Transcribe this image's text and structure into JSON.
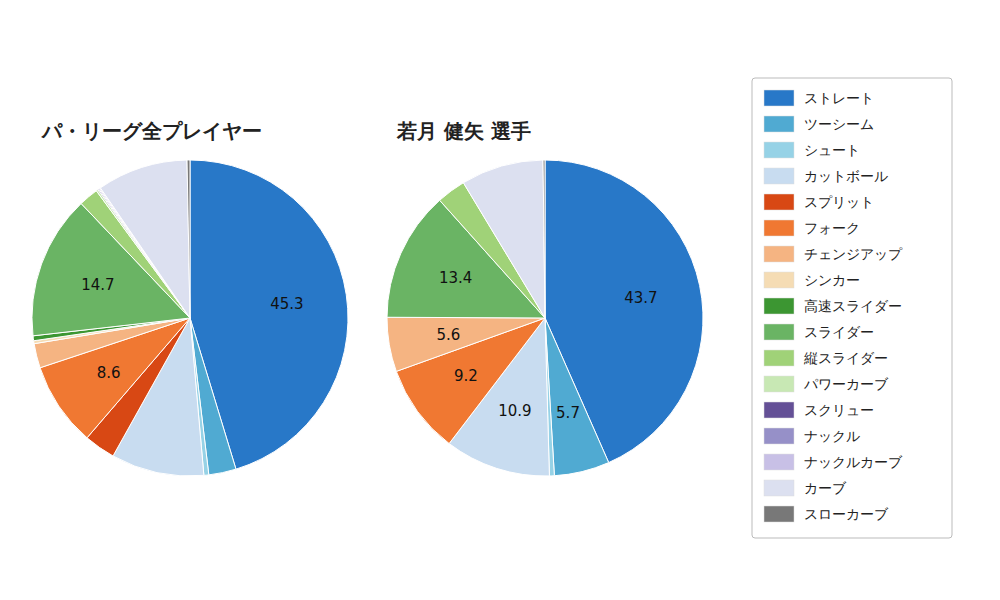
{
  "chart_data": [
    {
      "type": "pie",
      "title": "パ・リーグ全プレイヤー",
      "categories": [
        "ストレート",
        "ツーシーム",
        "シュート",
        "カットボール",
        "スプリット",
        "フォーク",
        "チェンジアップ",
        "シンカー",
        "高速スライダー",
        "スライダー",
        "縦スライダー",
        "パワーカーブ",
        "スクリュー",
        "ナックル",
        "ナックルカーブ",
        "カーブ",
        "スローカーブ"
      ],
      "values": [
        45.3,
        2.8,
        0.5,
        9.5,
        3.2,
        8.6,
        2.5,
        0.3,
        0.5,
        14.7,
        2.0,
        0.2,
        0.1,
        0.1,
        0.1,
        9.3,
        0.3
      ],
      "colors": [
        "#2878c8",
        "#50aad2",
        "#96d2e6",
        "#c8dcf0",
        "#d84814",
        "#f07832",
        "#f5b482",
        "#f5dcb4",
        "#3c9632",
        "#6ab464",
        "#a0d278",
        "#c8e8b4",
        "#645096",
        "#9690c8",
        "#c8c0e6",
        "#dce0f0",
        "#787878"
      ],
      "data_labels": true,
      "value_labels": [
        "45.3",
        null,
        null,
        null,
        null,
        "8.6",
        null,
        null,
        null,
        "14.7",
        null,
        null,
        null,
        null,
        null,
        null,
        null
      ],
      "legend": "right"
    },
    {
      "type": "pie",
      "title": "若月 健矢  選手",
      "categories": [
        "ストレート",
        "ツーシーム",
        "シュート",
        "カットボール",
        "フォーク",
        "チェンジアップ",
        "スライダー",
        "縦スライダー",
        "カーブ",
        "スローカーブ"
      ],
      "values": [
        43.7,
        5.7,
        0.5,
        10.9,
        9.2,
        5.6,
        13.4,
        3.0,
        8.5,
        0.2
      ],
      "colors": [
        "#2878c8",
        "#50aad2",
        "#96d2e6",
        "#c8dcf0",
        "#f07832",
        "#f5b482",
        "#6ab464",
        "#a0d278",
        "#dce0f0",
        "#787878"
      ],
      "data_labels": true,
      "value_labels": [
        "43.7",
        "5.7",
        null,
        "10.9",
        "9.2",
        "5.6",
        "13.4",
        null,
        null,
        null
      ]
    }
  ]
}
